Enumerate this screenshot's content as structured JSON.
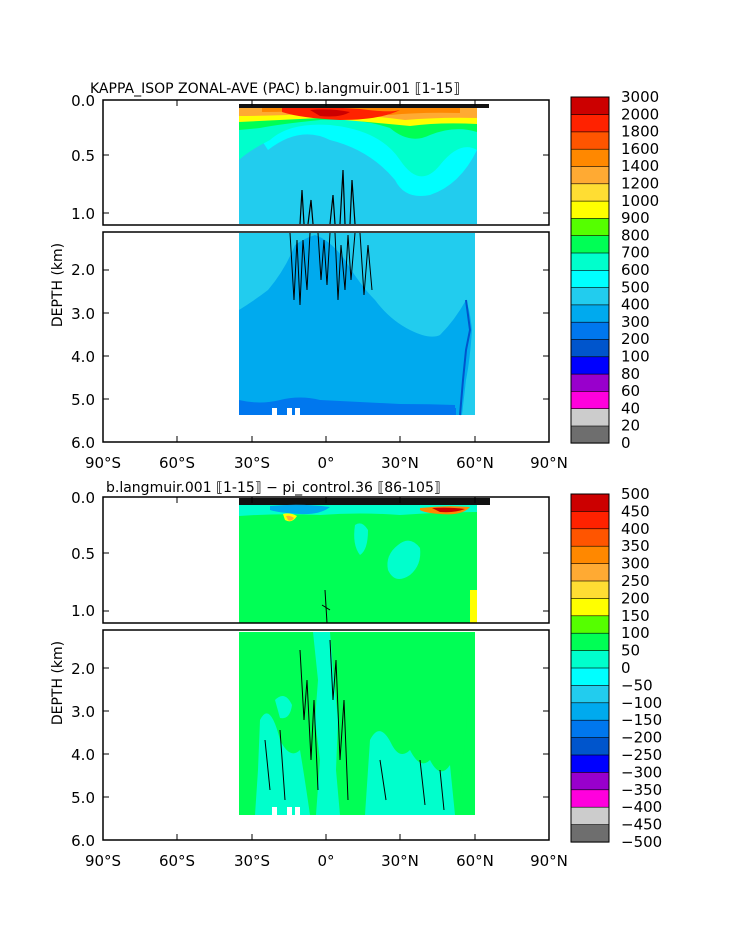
{
  "chart_data": [
    {
      "type": "heatmap",
      "title": "KAPPA_ISOP ZONAL-AVE (PAC) b.langmuir.001 ⟦1-15⟧",
      "ylabel": "DEPTH (km)",
      "x_ticks": [
        "90°S",
        "60°S",
        "30°S",
        "0°",
        "30°N",
        "60°N",
        "90°N"
      ],
      "y_ticks_upper": [
        "0.0",
        "0.5",
        "1.0"
      ],
      "y_ticks_lower": [
        "2.0",
        "3.0",
        "4.0",
        "5.0",
        "6.0"
      ],
      "xlim": [
        -90,
        90
      ],
      "ylim_upper": [
        0,
        1.15
      ],
      "ylim_lower": [
        1.15,
        6.0
      ],
      "data_extent_lat": [
        -34,
        66
      ],
      "levels": [
        "0",
        "20",
        "40",
        "60",
        "80",
        "100",
        "200",
        "300",
        "400",
        "500",
        "600",
        "700",
        "800",
        "900",
        "1000",
        "1200",
        "1400",
        "1600",
        "1800",
        "2000",
        "3000"
      ],
      "colors": [
        "#6e6e6e",
        "#cccccc",
        "#ff00dd",
        "#9900cc",
        "#0000ff",
        "#0055cc",
        "#0077ee",
        "#00aaee",
        "#22ccee",
        "#00ffff",
        "#00ffcc",
        "#00ff55",
        "#55ff00",
        "#ffff00",
        "#ffdd33",
        "#ffaa33",
        "#ff8800",
        "#ff5500",
        "#ff2200",
        "#cc0000"
      ]
    },
    {
      "type": "heatmap",
      "title": "b.langmuir.001 ⟦1-15⟧ − pi_control.36 ⟦86-105⟧",
      "ylabel": "DEPTH (km)",
      "x_ticks": [
        "90°S",
        "60°S",
        "30°S",
        "0°",
        "30°N",
        "60°N",
        "90°N"
      ],
      "y_ticks_upper": [
        "0.0",
        "0.5",
        "1.0"
      ],
      "y_ticks_lower": [
        "2.0",
        "3.0",
        "4.0",
        "5.0",
        "6.0"
      ],
      "xlim": [
        -90,
        90
      ],
      "ylim_upper": [
        0,
        1.15
      ],
      "ylim_lower": [
        1.15,
        6.0
      ],
      "data_extent_lat": [
        -34,
        66
      ],
      "levels": [
        "500",
        "450",
        "400",
        "350",
        "300",
        "250",
        "200",
        "150",
        "100",
        "50",
        "0",
        "−50",
        "−100",
        "−150",
        "−200",
        "−250",
        "−300",
        "−350",
        "−400",
        "−450",
        "−500"
      ],
      "colors": [
        "#cc0000",
        "#ff2200",
        "#ff5500",
        "#ff8800",
        "#ffaa33",
        "#ffdd33",
        "#ffff00",
        "#55ff00",
        "#00ff55",
        "#00ffcc",
        "#00ffff",
        "#22ccee",
        "#00aaee",
        "#0077ee",
        "#0055cc",
        "#0000ff",
        "#9900cc",
        "#ff00dd",
        "#cccccc",
        "#6e6e6e"
      ]
    }
  ]
}
